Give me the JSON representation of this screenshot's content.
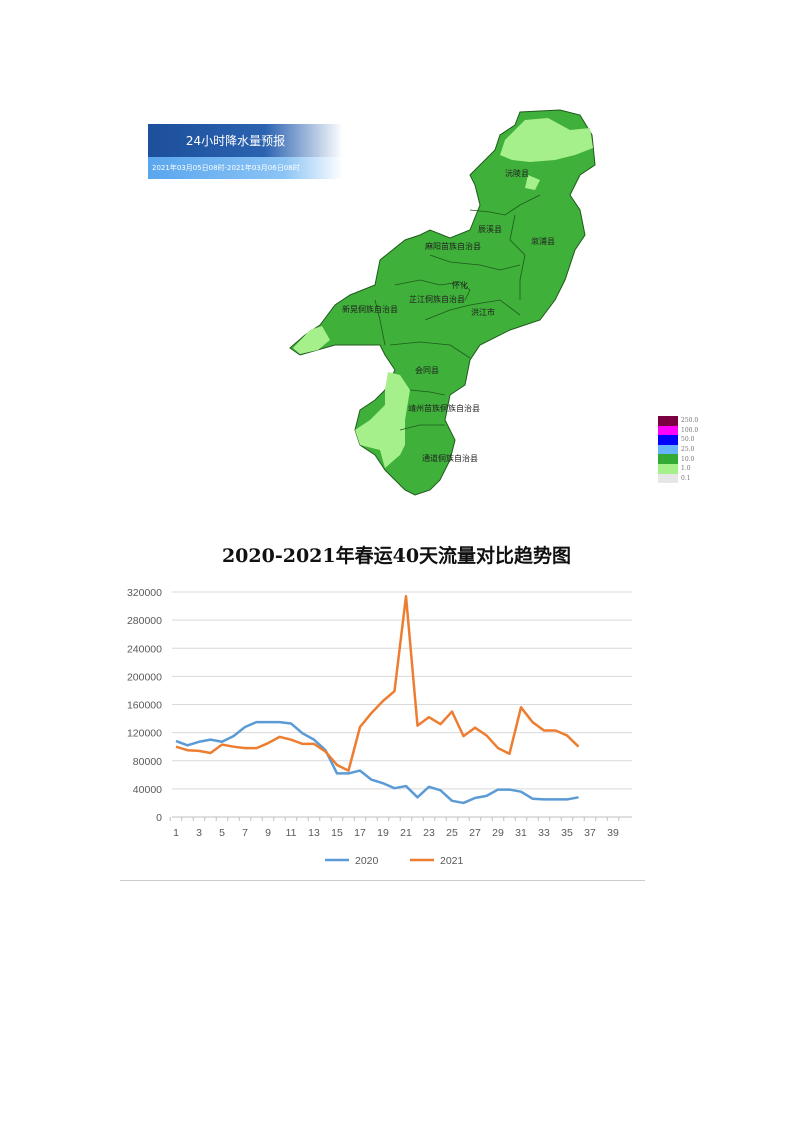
{
  "map_panel": {
    "title": "24小时降水量预报",
    "period": "2021年03月05日08时-2021年03月06日08时",
    "regions": [
      "沅陵县",
      "辰溪县",
      "溆浦县",
      "麻阳苗族自治县",
      "怀化",
      "芷江侗族自治县",
      "新晃侗族自治县",
      "洪江市",
      "会同县",
      "靖州苗族侗族自治县",
      "通道侗族自治县"
    ],
    "legend": [
      {
        "label": "250.0",
        "color": "#7a0040"
      },
      {
        "label": "100.0",
        "color": "#ff00ff"
      },
      {
        "label": "50.0",
        "color": "#0000ff"
      },
      {
        "label": "25.0",
        "color": "#66b3ff"
      },
      {
        "label": "10.0",
        "color": "#33aa33"
      },
      {
        "label": "1.0",
        "color": "#a6f08c"
      },
      {
        "label": "0.1",
        "color": "#e6e6e6"
      }
    ]
  },
  "chart_data": {
    "type": "line",
    "title": "2020-2021年春运40天流量对比趋势图",
    "xlabel": "",
    "ylabel": "",
    "x_ticks": [
      1,
      3,
      5,
      7,
      9,
      11,
      13,
      15,
      17,
      19,
      21,
      23,
      25,
      27,
      29,
      31,
      33,
      35,
      37,
      39
    ],
    "xlim": [
      1,
      40
    ],
    "ylim": [
      0,
      320000
    ],
    "y_ticks": [
      0,
      40000,
      80000,
      120000,
      160000,
      200000,
      240000,
      280000,
      320000
    ],
    "grid": true,
    "legend_placement": "bottom",
    "series": [
      {
        "name": "2020",
        "color": "#5b9bd5",
        "values": [
          108000,
          102000,
          107000,
          110000,
          107000,
          115000,
          128000,
          135000,
          135000,
          135000,
          133000,
          119000,
          110000,
          95000,
          62000,
          62000,
          66000,
          53000,
          48000,
          41000,
          44000,
          28000,
          43000,
          38000,
          23000,
          20000,
          27000,
          30000,
          39000,
          39000,
          36000,
          26000,
          25000,
          25000,
          25000,
          28000
        ]
      },
      {
        "name": "2021",
        "color": "#ed7d31",
        "values": [
          100000,
          95000,
          94000,
          91000,
          103000,
          100000,
          98000,
          98000,
          105000,
          114000,
          110000,
          104000,
          104000,
          93000,
          74000,
          66000,
          128000,
          148000,
          165000,
          179000,
          314000,
          130000,
          142000,
          132000,
          150000,
          115000,
          127000,
          116000,
          98000,
          90000,
          156000,
          135000,
          123000,
          123000,
          116000,
          100000
        ]
      }
    ]
  }
}
